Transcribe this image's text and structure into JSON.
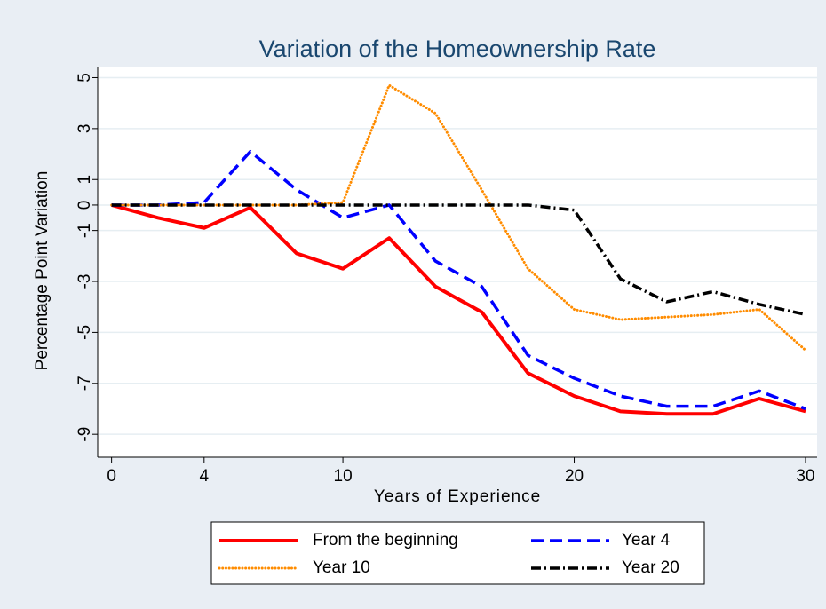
{
  "chart_data": {
    "type": "line",
    "title": "Variation of the Homeownership Rate",
    "x_label": "Years of Experience",
    "y_label": "Percentage Point Variation",
    "x": [
      0,
      2,
      4,
      6,
      8,
      10,
      12,
      14,
      16,
      18,
      20,
      22,
      24,
      26,
      28,
      30
    ],
    "series": [
      {
        "name": "From the beginning",
        "color": "#ff0000",
        "style": "solid",
        "values": [
          0,
          -0.5,
          -0.9,
          -0.1,
          -1.9,
          -2.5,
          -1.3,
          -3.2,
          -4.2,
          -6.6,
          -7.5,
          -8.1,
          -8.2,
          -8.2,
          -7.6,
          -8.1
        ]
      },
      {
        "name": "Year 4",
        "color": "#0000ff",
        "style": "dash",
        "values": [
          0,
          0,
          0.1,
          2.1,
          0.6,
          -0.5,
          0,
          -2.2,
          -3.2,
          -5.9,
          -6.8,
          -7.5,
          -7.9,
          -7.9,
          -7.3,
          -8.0
        ]
      },
      {
        "name": "Year 10",
        "color": "#ff8c00",
        "style": "dot",
        "values": [
          0,
          0,
          0,
          0,
          0,
          0.1,
          4.7,
          3.6,
          0.6,
          -2.5,
          -4.1,
          -4.5,
          -4.4,
          -4.3,
          -4.1,
          -5.7
        ]
      },
      {
        "name": "Year 20",
        "color": "#000000",
        "style": "dashdot",
        "values": [
          0,
          0,
          0,
          0,
          0,
          0,
          0,
          0,
          0,
          0,
          -0.2,
          -2.9,
          -3.8,
          -3.4,
          -3.9,
          -4.3
        ]
      }
    ],
    "xlim": [
      -0.6,
      30.5
    ],
    "xticks": [
      0,
      4,
      10,
      20,
      30
    ],
    "ylim": [
      -9.9,
      5.4
    ],
    "yticks": [
      5,
      3,
      1,
      0,
      -1,
      -3,
      -5,
      -7,
      -9
    ],
    "grid": true,
    "legend": "bottom"
  }
}
